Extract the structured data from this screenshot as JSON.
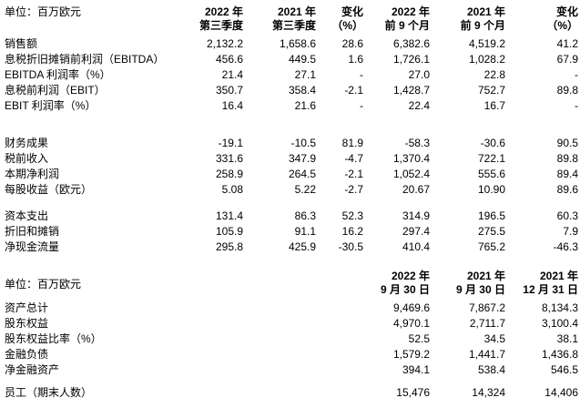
{
  "page": {
    "background_color": "#ffffff",
    "text_color": "#000000"
  },
  "section1": {
    "unit_label": "单位：百万欧元",
    "columns": [
      {
        "line1": "2022 年",
        "line2": "第三季度"
      },
      {
        "line1": "2021 年",
        "line2": "第三季度"
      },
      {
        "line1": "变化",
        "line2": "（%）"
      },
      {
        "line1": "2022 年",
        "line2": "前 9 个月"
      },
      {
        "line1": "2021 年",
        "line2": "前 9 个月"
      },
      {
        "line1": "变化",
        "line2": "（%）"
      }
    ],
    "groups": [
      {
        "rows": [
          {
            "label": "销售额",
            "values": [
              "2,132.2",
              "1,658.6",
              "28.6",
              "6,382.6",
              "4,519.2",
              "41.2"
            ]
          },
          {
            "label": "息税折旧摊销前利润（EBITDA）",
            "values": [
              "456.6",
              "449.5",
              "1.6",
              "1,726.1",
              "1,028.2",
              "67.9"
            ]
          },
          {
            "label": "EBITDA 利润率（%）",
            "values": [
              "21.4",
              "27.1",
              "-",
              "27.0",
              "22.8",
              "-"
            ]
          },
          {
            "label": "息税前利润（EBIT）",
            "values": [
              "350.7",
              "358.4",
              "-2.1",
              "1,428.7",
              "752.7",
              "89.8"
            ]
          },
          {
            "label": "EBIT 利润率（%）",
            "values": [
              "16.4",
              "21.6",
              "-",
              "22.4",
              "16.7",
              "-"
            ]
          }
        ]
      },
      {
        "rows": [
          {
            "label": "财务成果",
            "values": [
              "-19.1",
              "-10.5",
              "81.9",
              "-58.3",
              "-30.6",
              "90.5"
            ]
          },
          {
            "label": "税前收入",
            "values": [
              "331.6",
              "347.9",
              "-4.7",
              "1,370.4",
              "722.1",
              "89.8"
            ]
          },
          {
            "label": "本期净利润",
            "values": [
              "258.9",
              "264.5",
              "-2.1",
              "1,052.4",
              "555.6",
              "89.4"
            ]
          },
          {
            "label": "每股收益（欧元）",
            "values": [
              "5.08",
              "5.22",
              "-2.7",
              "20.67",
              "10.90",
              "89.6"
            ]
          }
        ]
      },
      {
        "rows": [
          {
            "label": "资本支出",
            "values": [
              "131.4",
              "86.3",
              "52.3",
              "314.9",
              "196.5",
              "60.3"
            ]
          },
          {
            "label": "折旧和摊销",
            "values": [
              "105.9",
              "91.1",
              "16.2",
              "297.4",
              "275.5",
              "7.9"
            ]
          },
          {
            "label": "净现金流量",
            "values": [
              "295.8",
              "425.9",
              "-30.5",
              "410.4",
              "765.2",
              "-46.3"
            ]
          }
        ]
      }
    ]
  },
  "section2": {
    "unit_label": "单位：百万欧元",
    "columns": [
      {
        "line1": "2022 年",
        "line2": "9 月 30 日"
      },
      {
        "line1": "2021 年",
        "line2": "9 月 30 日"
      },
      {
        "line1": "2021 年",
        "line2": "12 月 31 日"
      }
    ],
    "groups": [
      {
        "rows": [
          {
            "label": "资产总计",
            "values": [
              "9,469.6",
              "7,867.2",
              "8,134.3"
            ]
          },
          {
            "label": "股东权益",
            "values": [
              "4,970.1",
              "2,711.7",
              "3,100.4"
            ]
          },
          {
            "label": "股东权益比率（%）",
            "values": [
              "52.5",
              "34.5",
              "38.1"
            ]
          },
          {
            "label": "金融负债",
            "values": [
              "1,579.2",
              "1,441.7",
              "1,436.8"
            ]
          },
          {
            "label": "净金融资产",
            "values": [
              "394.1",
              "538.4",
              "546.5"
            ]
          }
        ]
      },
      {
        "rows": [
          {
            "label": "员工（期末人数）",
            "values": [
              "15,476",
              "14,324",
              "14,406"
            ]
          }
        ]
      }
    ]
  }
}
